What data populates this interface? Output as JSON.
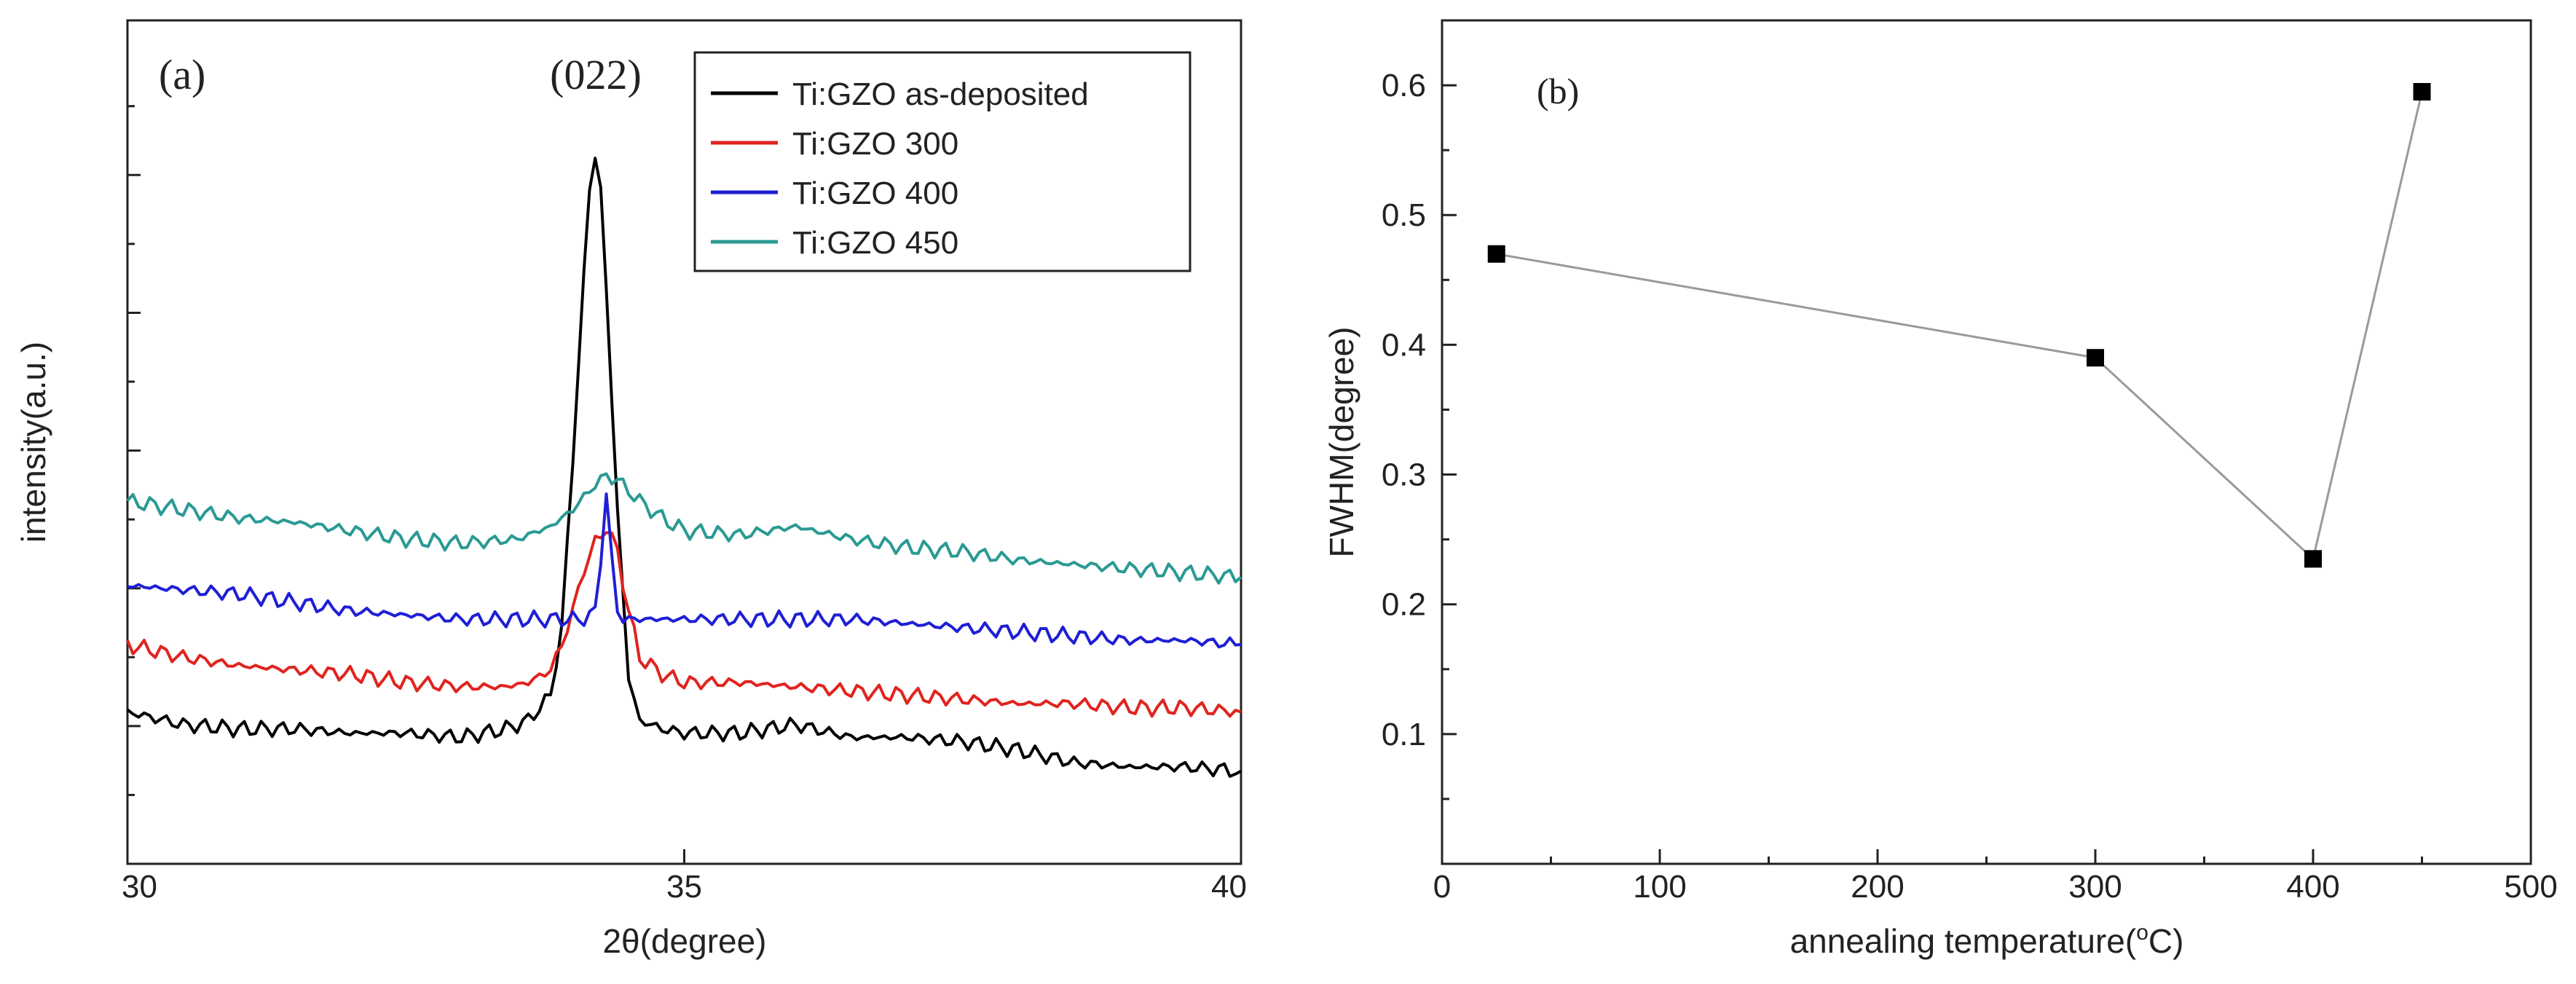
{
  "chart_data": [
    {
      "type": "line",
      "panel_label": "(a)",
      "xlabel": "2θ(degree)",
      "ylabel": "intensity(a.u.)",
      "xlim": [
        30,
        40
      ],
      "ylim": [
        0,
        1
      ],
      "x_ticks": [
        30,
        35,
        40
      ],
      "y_tick_labels_shown": false,
      "annotation": "(022)",
      "legend_position": "top-right",
      "series": [
        {
          "name": "Ti:GZO as-deposited",
          "color": "#000000",
          "x": [
            30.0,
            30.5,
            31.0,
            31.5,
            32.0,
            32.5,
            33.0,
            33.4,
            33.6,
            33.8,
            33.9,
            34.0,
            34.1,
            34.15,
            34.2,
            34.25,
            34.3,
            34.4,
            34.5,
            34.6,
            34.8,
            35.0,
            35.5,
            36.0,
            36.5,
            37.0,
            37.5,
            38.0,
            38.5,
            39.0,
            39.5,
            40.0
          ],
          "y": [
            0.18,
            0.165,
            0.16,
            0.16,
            0.155,
            0.155,
            0.15,
            0.16,
            0.17,
            0.2,
            0.28,
            0.48,
            0.7,
            0.8,
            0.84,
            0.8,
            0.68,
            0.42,
            0.22,
            0.17,
            0.16,
            0.155,
            0.155,
            0.165,
            0.15,
            0.15,
            0.145,
            0.135,
            0.12,
            0.115,
            0.115,
            0.11
          ]
        },
        {
          "name": "Ti:GZO 300",
          "color": "#e0241f",
          "x": [
            30.0,
            30.5,
            31.0,
            31.5,
            32.0,
            32.5,
            33.0,
            33.4,
            33.6,
            33.8,
            33.9,
            34.0,
            34.1,
            34.2,
            34.3,
            34.4,
            34.5,
            34.6,
            34.8,
            35.0,
            35.5,
            36.0,
            36.5,
            37.0,
            37.5,
            38.0,
            38.5,
            39.0,
            39.5,
            40.0
          ],
          "y": [
            0.26,
            0.245,
            0.235,
            0.23,
            0.225,
            0.215,
            0.21,
            0.21,
            0.215,
            0.23,
            0.26,
            0.3,
            0.35,
            0.38,
            0.4,
            0.37,
            0.3,
            0.245,
            0.225,
            0.215,
            0.215,
            0.21,
            0.205,
            0.2,
            0.195,
            0.19,
            0.19,
            0.185,
            0.185,
            0.18
          ]
        },
        {
          "name": "Ti:GZO 400",
          "color": "#1f1fd6",
          "x": [
            30.0,
            30.5,
            31.0,
            31.5,
            32.0,
            32.5,
            33.0,
            33.5,
            33.9,
            34.1,
            34.2,
            34.25,
            34.3,
            34.35,
            34.4,
            34.45,
            34.6,
            35.0,
            35.5,
            36.0,
            36.5,
            37.0,
            37.5,
            38.0,
            38.5,
            39.0,
            39.5,
            40.0
          ],
          "y": [
            0.33,
            0.325,
            0.32,
            0.31,
            0.3,
            0.295,
            0.29,
            0.29,
            0.29,
            0.29,
            0.3,
            0.36,
            0.44,
            0.36,
            0.3,
            0.29,
            0.29,
            0.29,
            0.29,
            0.29,
            0.29,
            0.285,
            0.28,
            0.275,
            0.27,
            0.265,
            0.265,
            0.26
          ]
        },
        {
          "name": "Ti:GZO 450",
          "color": "#2a9a93",
          "x": [
            30.0,
            30.5,
            31.0,
            31.5,
            32.0,
            32.5,
            33.0,
            33.5,
            33.8,
            34.0,
            34.2,
            34.3,
            34.4,
            34.6,
            34.8,
            35.0,
            35.5,
            36.0,
            36.5,
            37.0,
            37.5,
            38.0,
            38.5,
            39.0,
            39.5,
            40.0
          ],
          "y": [
            0.43,
            0.42,
            0.41,
            0.405,
            0.395,
            0.385,
            0.38,
            0.385,
            0.4,
            0.42,
            0.45,
            0.46,
            0.455,
            0.43,
            0.41,
            0.395,
            0.39,
            0.4,
            0.385,
            0.375,
            0.37,
            0.36,
            0.355,
            0.35,
            0.345,
            0.34
          ]
        }
      ]
    },
    {
      "type": "scatter",
      "panel_label": "(b)",
      "xlabel": "annealing temperature(°C)",
      "ylabel": "FWHM(degree)",
      "xlim": [
        0,
        500
      ],
      "ylim": [
        0.0,
        0.65
      ],
      "x_ticks": [
        0,
        100,
        200,
        300,
        400,
        500
      ],
      "y_ticks": [
        0.1,
        0.2,
        0.3,
        0.4,
        0.5,
        0.6
      ],
      "connect_points": true,
      "marker": "square",
      "color": "#000000",
      "line_color": "#9a9a9a",
      "series": [
        {
          "name": "FWHM",
          "x": [
            25,
            300,
            400,
            450
          ],
          "y": [
            0.47,
            0.39,
            0.235,
            0.595
          ]
        }
      ]
    }
  ]
}
